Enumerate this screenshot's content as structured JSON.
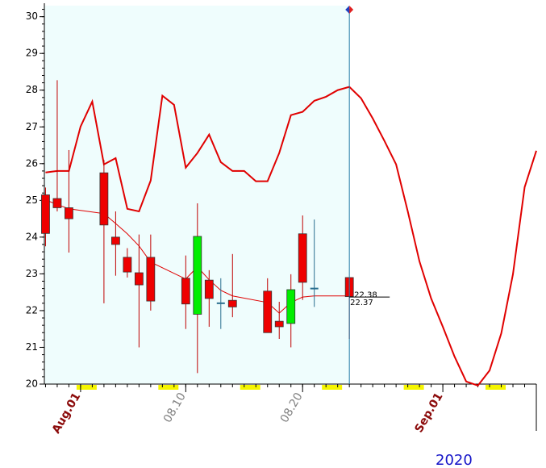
{
  "chart_data": {
    "type": "candlestick",
    "year_label": "2020",
    "xlim": [
      -2.1,
      40
    ],
    "ylim": [
      20,
      30.3
    ],
    "yticks": [
      20,
      21,
      22,
      23,
      24,
      25,
      26,
      27,
      28,
      29,
      30
    ],
    "xticks": [
      {
        "value": 1,
        "label": "Aug.01"
      },
      {
        "value": 10,
        "label": "08.10"
      },
      {
        "value": 20,
        "label": "08.20"
      },
      {
        "value": 32,
        "label": "Sep.01"
      }
    ],
    "xtick_colors": [
      "#8b0a0a",
      "#808080",
      "#808080",
      "#8b0a0a"
    ],
    "up_color": "#00ee00",
    "down_color": "#ee0000",
    "flat_color": "#2a6f8f",
    "candles": {
      "x": [
        -2,
        -1,
        0,
        3,
        4,
        5,
        6,
        7,
        10,
        11,
        12,
        13,
        14,
        17,
        18,
        19,
        20,
        21,
        24
      ],
      "open": [
        25.15,
        25.05,
        24.8,
        25.75,
        24.0,
        23.45,
        23.03,
        23.45,
        22.88,
        21.9,
        22.83,
        22.2,
        22.28,
        22.53,
        21.71,
        21.65,
        24.09,
        22.6,
        22.9
      ],
      "high": [
        25.35,
        28.27,
        26.37,
        26.1,
        24.7,
        23.7,
        24.07,
        24.07,
        23.5,
        24.92,
        23.1,
        22.88,
        23.54,
        22.88,
        22.24,
        22.99,
        24.59,
        24.48,
        22.9
      ],
      "low": [
        23.75,
        24.7,
        23.58,
        22.2,
        22.95,
        22.9,
        21.0,
        22.0,
        21.5,
        20.3,
        21.56,
        21.5,
        21.82,
        21.4,
        21.23,
        21.0,
        22.29,
        22.1,
        21.23
      ],
      "close": [
        24.1,
        24.8,
        24.5,
        24.33,
        23.8,
        23.05,
        22.7,
        22.26,
        22.18,
        24.02,
        22.33,
        22.2,
        22.1,
        21.4,
        21.56,
        22.57,
        22.77,
        22.6,
        22.38
      ]
    },
    "lines": [
      {
        "color": "#e00000",
        "x": [
          -2,
          -1,
          0,
          1,
          2,
          3,
          4,
          5,
          6,
          7,
          8,
          9,
          10,
          11,
          12,
          13,
          14,
          15,
          16,
          17,
          18,
          19,
          20,
          21,
          22,
          23,
          24,
          25,
          26,
          27,
          28,
          29,
          30,
          31,
          32,
          33,
          34,
          35,
          36,
          37,
          38,
          39,
          40
        ],
        "values": [
          25.76,
          25.8,
          25.8,
          27.01,
          27.69,
          25.98,
          26.15,
          24.77,
          24.7,
          25.54,
          27.85,
          27.6,
          25.89,
          26.29,
          26.79,
          26.04,
          25.8,
          25.8,
          25.52,
          25.52,
          26.29,
          27.32,
          27.41,
          27.71,
          27.82,
          28.0,
          28.09,
          27.78,
          27.23,
          26.62,
          25.98,
          24.7,
          23.34,
          22.33,
          21.56,
          20.75,
          20.07,
          19.96,
          20.37,
          21.38,
          22.99,
          25.36,
          26.35
        ]
      },
      {
        "color": "#e00000",
        "x": [
          -2,
          0,
          3,
          4,
          5,
          6,
          7,
          10,
          11,
          12,
          13,
          14,
          17,
          18,
          19,
          20,
          21,
          24
        ],
        "values": [
          25.01,
          24.77,
          24.64,
          24.37,
          24.09,
          23.76,
          23.32,
          22.86,
          23.19,
          22.84,
          22.55,
          22.4,
          22.22,
          21.93,
          22.22,
          22.37,
          22.4,
          22.4
        ]
      }
    ],
    "last_labels": [
      22.38,
      22.37
    ]
  }
}
